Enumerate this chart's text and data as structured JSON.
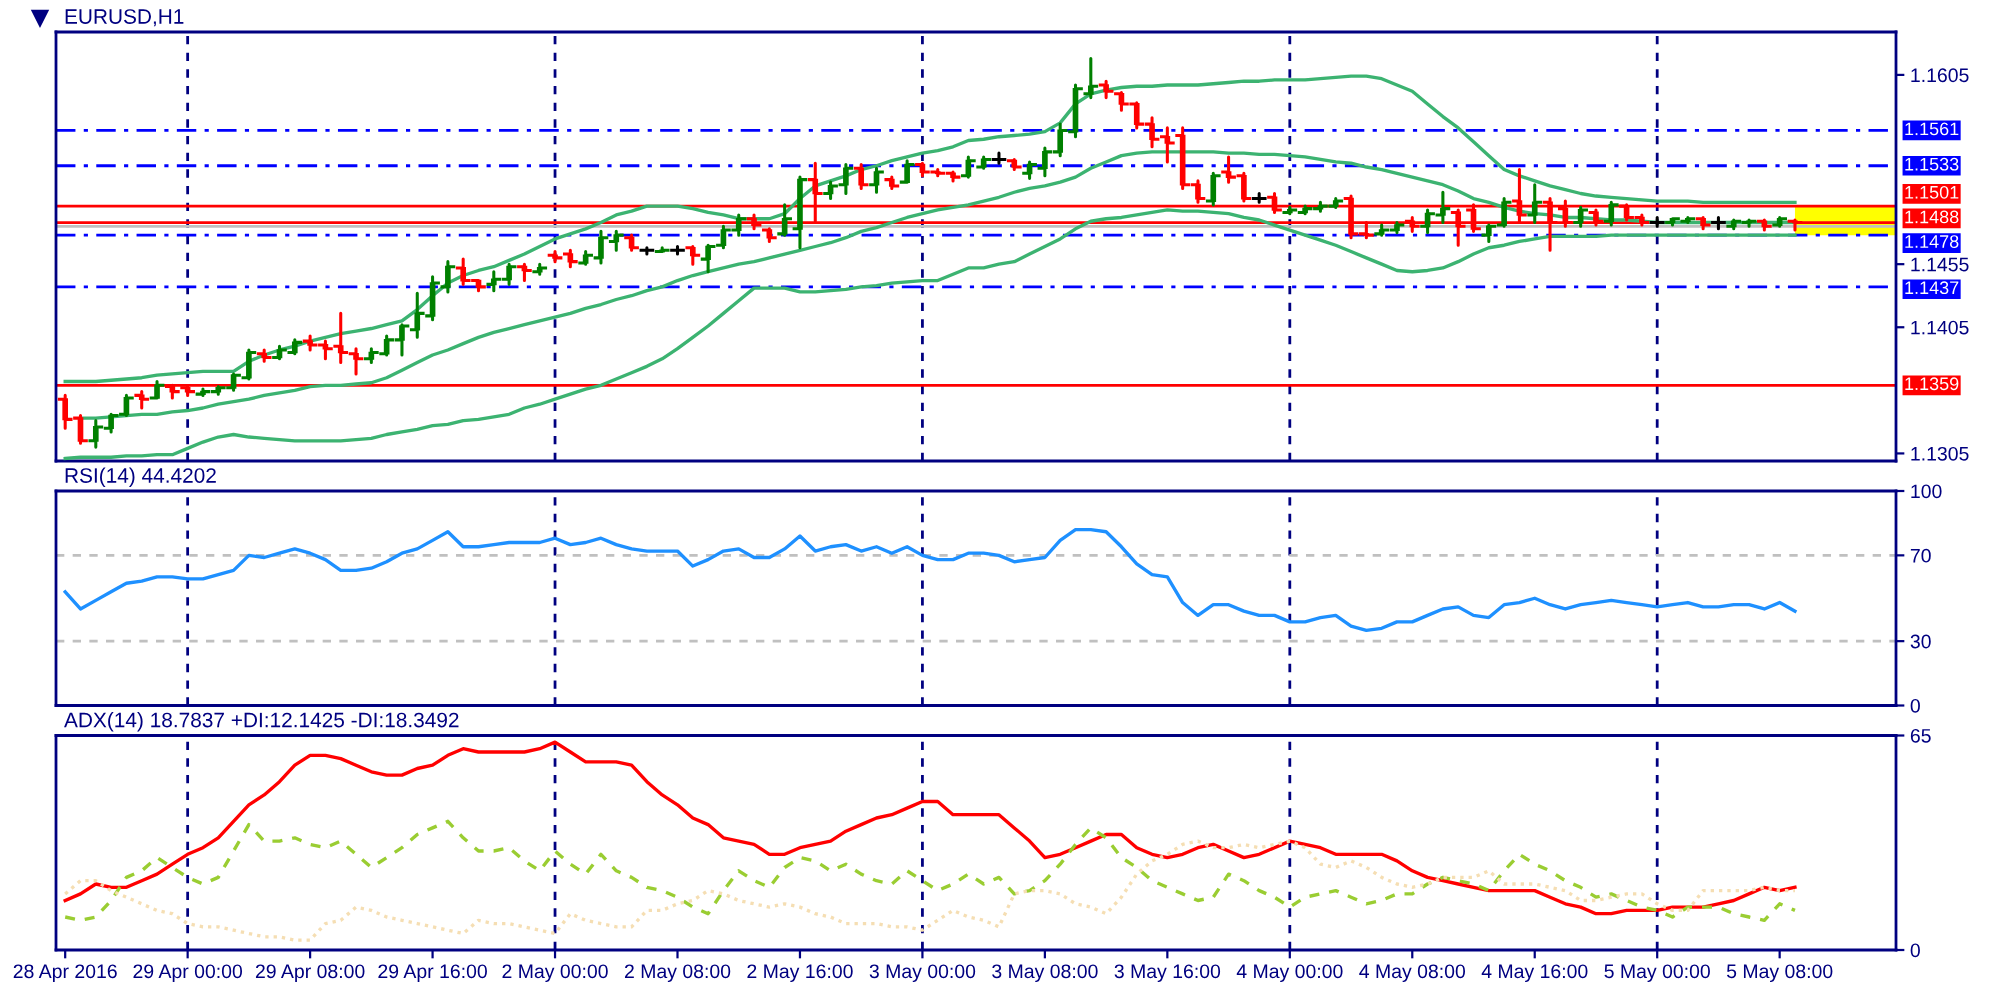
{
  "chart_data": [
    {
      "type": "candlestick",
      "title": "EURUSD,H1",
      "categories": [
        null,
        null,
        null,
        null,
        null,
        null,
        null,
        null,
        null,
        null,
        null,
        null,
        null,
        null,
        null,
        null,
        null,
        null,
        null,
        null,
        null,
        null,
        null,
        null,
        null,
        null,
        null,
        null,
        null,
        null,
        null,
        null,
        null,
        null,
        null,
        null,
        null,
        null,
        null,
        null,
        null,
        null,
        null,
        null,
        null,
        null,
        null,
        null,
        null,
        null,
        null,
        null,
        null,
        null,
        null,
        null,
        null,
        null,
        null,
        null,
        null,
        null,
        null,
        null,
        null,
        null,
        null,
        null,
        null,
        null,
        null,
        null,
        null,
        null,
        null,
        null,
        null,
        null,
        null,
        null,
        null,
        null,
        null,
        null,
        null,
        null,
        null,
        null,
        null,
        null,
        null,
        null,
        null,
        null,
        null,
        null,
        null,
        null,
        null,
        null,
        null,
        null,
        null,
        null,
        null,
        null,
        null,
        null,
        null,
        null,
        null,
        null,
        null,
        null
      ],
      "ohlc": [
        [
          1.1348,
          1.1351,
          1.1325,
          1.1332
        ],
        [
          1.1333,
          1.1335,
          1.1313,
          1.1315
        ],
        [
          1.1315,
          1.1331,
          1.131,
          1.1326
        ],
        [
          1.1325,
          1.1336,
          1.1322,
          1.1335
        ],
        [
          1.1336,
          1.1351,
          1.1335,
          1.1349
        ],
        [
          1.1351,
          1.1354,
          1.1341,
          1.1348
        ],
        [
          1.1349,
          1.1362,
          1.1349,
          1.1359
        ],
        [
          1.1358,
          1.1359,
          1.1349,
          1.1354
        ],
        [
          1.1357,
          1.1358,
          1.1351,
          1.1354
        ],
        [
          1.1352,
          1.1356,
          1.1351,
          1.1354
        ],
        [
          1.1354,
          1.1358,
          1.1352,
          1.1357
        ],
        [
          1.1357,
          1.1368,
          1.1355,
          1.1367
        ],
        [
          1.1365,
          1.1387,
          1.1364,
          1.1385
        ],
        [
          1.1384,
          1.1387,
          1.1378,
          1.1381
        ],
        [
          1.1381,
          1.139,
          1.138,
          1.1387
        ],
        [
          1.1385,
          1.1395,
          1.1384,
          1.1393
        ],
        [
          1.1394,
          1.1398,
          1.1387,
          1.1391
        ],
        [
          1.1391,
          1.1394,
          1.138,
          1.1388
        ],
        [
          1.139,
          1.1416,
          1.1377,
          1.1385
        ],
        [
          1.1384,
          1.1388,
          1.1368,
          1.138
        ],
        [
          1.138,
          1.1388,
          1.1377,
          1.1385
        ],
        [
          1.1384,
          1.1398,
          1.1383,
          1.1395
        ],
        [
          1.1395,
          1.1407,
          1.1383,
          1.1406
        ],
        [
          1.1403,
          1.1432,
          1.1397,
          1.1416
        ],
        [
          1.1414,
          1.1445,
          1.1411,
          1.144
        ],
        [
          1.1437,
          1.1457,
          1.1433,
          1.1453
        ],
        [
          1.1452,
          1.1459,
          1.1439,
          1.1442
        ],
        [
          1.1442,
          1.1442,
          1.1434,
          1.1437
        ],
        [
          1.1439,
          1.1449,
          1.1434,
          1.1443
        ],
        [
          1.1443,
          1.1455,
          1.1439,
          1.1453
        ],
        [
          1.1453,
          1.1455,
          1.1442,
          1.145
        ],
        [
          1.1449,
          1.1455,
          1.1447,
          1.1452
        ],
        [
          1.1462,
          1.1465,
          1.1457,
          1.146
        ],
        [
          1.1463,
          1.1466,
          1.1453,
          1.1457
        ],
        [
          1.1456,
          1.1465,
          1.1455,
          1.1462
        ],
        [
          1.146,
          1.1481,
          1.1456,
          1.1476
        ],
        [
          1.1473,
          1.1481,
          1.1466,
          1.1478
        ],
        [
          1.1476,
          1.1478,
          1.1466,
          1.1468
        ],
        [
          1.1466,
          1.1468,
          1.1463,
          1.1466
        ],
        [
          1.1465,
          1.1468,
          1.1465,
          1.1466
        ],
        [
          1.1466,
          1.1469,
          1.1463,
          1.1466
        ],
        [
          1.1468,
          1.1469,
          1.1455,
          1.1462
        ],
        [
          1.1459,
          1.147,
          1.1449,
          1.1469
        ],
        [
          1.147,
          1.1485,
          1.1468,
          1.1482
        ],
        [
          1.1482,
          1.1494,
          1.1478,
          1.1491
        ],
        [
          1.1491,
          1.1494,
          1.1483,
          1.1486
        ],
        [
          1.1482,
          1.1483,
          1.1473,
          1.1476
        ],
        [
          1.1479,
          1.1502,
          1.1478,
          1.1491
        ],
        [
          1.1483,
          1.1524,
          1.1468,
          1.1522
        ],
        [
          1.1522,
          1.1535,
          1.1489,
          1.1511
        ],
        [
          1.1511,
          1.152,
          1.1507,
          1.1517
        ],
        [
          1.1518,
          1.1534,
          1.1511,
          1.1531
        ],
        [
          1.1531,
          1.1534,
          1.1515,
          1.1518
        ],
        [
          1.1518,
          1.1531,
          1.1512,
          1.1528
        ],
        [
          1.1522,
          1.1524,
          1.1515,
          1.1517
        ],
        [
          1.152,
          1.1537,
          1.152,
          1.1534
        ],
        [
          1.1534,
          1.1535,
          1.1525,
          1.1528
        ],
        [
          1.1528,
          1.153,
          1.1525,
          1.1527
        ],
        [
          1.1527,
          1.1528,
          1.1521,
          1.1524
        ],
        [
          1.1525,
          1.154,
          1.1524,
          1.1537
        ],
        [
          1.1532,
          1.154,
          1.1531,
          1.1538
        ],
        [
          1.1538,
          1.1543,
          1.1535,
          1.1538
        ],
        [
          1.1537,
          1.1538,
          1.153,
          1.1532
        ],
        [
          1.1527,
          1.1536,
          1.1523,
          1.1534
        ],
        [
          1.1531,
          1.1547,
          1.1525,
          1.1544
        ],
        [
          1.1544,
          1.1566,
          1.1541,
          1.1561
        ],
        [
          1.156,
          1.1597,
          1.1556,
          1.1594
        ],
        [
          1.159,
          1.1618,
          1.1587,
          1.1596
        ],
        [
          1.1597,
          1.16,
          1.1587,
          1.1592
        ],
        [
          1.159,
          1.1591,
          1.1577,
          1.1582
        ],
        [
          1.1582,
          1.1583,
          1.1563,
          1.1566
        ],
        [
          1.1566,
          1.1571,
          1.1548,
          1.1554
        ],
        [
          1.1556,
          1.1563,
          1.1536,
          1.1551
        ],
        [
          1.1557,
          1.1563,
          1.1515,
          1.1518
        ],
        [
          1.1518,
          1.1521,
          1.1504,
          1.1507
        ],
        [
          1.1505,
          1.1527,
          1.1502,
          1.1525
        ],
        [
          1.1528,
          1.154,
          1.152,
          1.1524
        ],
        [
          1.1525,
          1.1527,
          1.1505,
          1.1507
        ],
        [
          1.1507,
          1.1511,
          1.1504,
          1.1507
        ],
        [
          1.1508,
          1.1511,
          1.1496,
          1.1498
        ],
        [
          1.1496,
          1.15,
          1.1495,
          1.1498
        ],
        [
          1.1496,
          1.1501,
          1.1495,
          1.1499
        ],
        [
          1.1499,
          1.1504,
          1.1497,
          1.1501
        ],
        [
          1.1501,
          1.1507,
          1.15,
          1.1505
        ],
        [
          1.1507,
          1.1509,
          1.1476,
          1.1479
        ],
        [
          1.1479,
          1.1488,
          1.1476,
          1.1478
        ],
        [
          1.1479,
          1.1486,
          1.1478,
          1.1482
        ],
        [
          1.1482,
          1.1488,
          1.148,
          1.1486
        ],
        [
          1.1489,
          1.1492,
          1.1481,
          1.1485
        ],
        [
          1.1485,
          1.1498,
          1.148,
          1.1495
        ],
        [
          1.1494,
          1.1512,
          1.1488,
          1.1499
        ],
        [
          1.1496,
          1.1498,
          1.147,
          1.1485
        ],
        [
          1.1498,
          1.1502,
          1.1481,
          1.1483
        ],
        [
          1.1478,
          1.1486,
          1.1473,
          1.1485
        ],
        [
          1.1486,
          1.1507,
          1.1485,
          1.1504
        ],
        [
          1.1505,
          1.153,
          1.1488,
          1.1494
        ],
        [
          1.1494,
          1.1518,
          1.1488,
          1.1504
        ],
        [
          1.1504,
          1.1507,
          1.1466,
          1.1488
        ],
        [
          1.1499,
          1.1505,
          1.1485,
          1.1488
        ],
        [
          1.1488,
          1.15,
          1.1485,
          1.1498
        ],
        [
          1.1496,
          1.1498,
          1.1486,
          1.1489
        ],
        [
          1.1489,
          1.1504,
          1.1486,
          1.1502
        ],
        [
          1.1501,
          1.1502,
          1.149,
          1.1492
        ],
        [
          1.1492,
          1.1494,
          1.1486,
          1.1488
        ],
        [
          1.1488,
          1.1492,
          1.1485,
          1.1488
        ],
        [
          1.1488,
          1.1491,
          1.1486,
          1.1491
        ],
        [
          1.1489,
          1.1492,
          1.1488,
          1.1491
        ],
        [
          1.1491,
          1.1492,
          1.1483,
          1.1486
        ],
        [
          1.1488,
          1.1492,
          1.1483,
          1.1488
        ],
        [
          1.1485,
          1.149,
          1.1483,
          1.1489
        ],
        [
          1.1488,
          1.149,
          1.1485,
          1.1489
        ],
        [
          1.1489,
          1.149,
          1.1482,
          1.1485
        ],
        [
          1.1486,
          1.1492,
          1.1485,
          1.1491
        ],
        [
          1.1489,
          1.149,
          1.1482,
          1.1488
        ]
      ],
      "colors": [
        "#ff0000",
        "#ff0000",
        "#008000",
        "#008000",
        "#008000",
        "#ff0000",
        "#008000",
        "#ff0000",
        "#ff0000",
        "#008000",
        "#008000",
        "#008000",
        "#008000",
        "#ff0000",
        "#008000",
        "#008000",
        "#ff0000",
        "#ff0000",
        "#ff0000",
        "#ff0000",
        "#008000",
        "#008000",
        "#008000",
        "#008000",
        "#008000",
        "#008000",
        "#ff0000",
        "#ff0000",
        "#008000",
        "#008000",
        "#ff0000",
        "#008000",
        "#ff0000",
        "#ff0000",
        "#008000",
        "#008000",
        "#008000",
        "#ff0000",
        "#000000",
        "#008000",
        "#000000",
        "#ff0000",
        "#008000",
        "#008000",
        "#008000",
        "#ff0000",
        "#ff0000",
        "#008000",
        "#008000",
        "#ff0000",
        "#008000",
        "#008000",
        "#ff0000",
        "#008000",
        "#ff0000",
        "#008000",
        "#ff0000",
        "#ff0000",
        "#ff0000",
        "#008000",
        "#008000",
        "#000000",
        "#ff0000",
        "#008000",
        "#008000",
        "#008000",
        "#008000",
        "#008000",
        "#ff0000",
        "#ff0000",
        "#ff0000",
        "#ff0000",
        "#ff0000",
        "#ff0000",
        "#ff0000",
        "#008000",
        "#ff0000",
        "#ff0000",
        "#000000",
        "#ff0000",
        "#008000",
        "#008000",
        "#008000",
        "#008000",
        "#ff0000",
        "#ff0000",
        "#008000",
        "#008000",
        "#ff0000",
        "#008000",
        "#008000",
        "#ff0000",
        "#ff0000",
        "#008000",
        "#008000",
        "#ff0000",
        "#008000",
        "#ff0000",
        "#ff0000",
        "#008000",
        "#ff0000",
        "#008000",
        "#ff0000",
        "#ff0000",
        "#000000",
        "#008000",
        "#008000",
        "#ff0000",
        "#000000",
        "#008000",
        "#008000",
        "#ff0000",
        "#008000",
        "#ff0000"
      ],
      "series": [
        {
          "type": "line",
          "color": "#3cb371",
          "values": [
            1.1362,
            1.1362,
            1.1362,
            1.1363,
            1.1364,
            1.1365,
            1.1367,
            1.1368,
            1.1369,
            1.137,
            1.137,
            1.137,
            1.1378,
            1.1383,
            1.1387,
            1.139,
            1.1394,
            1.1397,
            1.14,
            1.1402,
            1.1404,
            1.1407,
            1.141,
            1.1419,
            1.143,
            1.144,
            1.1446,
            1.145,
            1.1453,
            1.1458,
            1.1463,
            1.1469,
            1.1475,
            1.1479,
            1.1483,
            1.1488,
            1.1494,
            1.1497,
            1.1501,
            1.1501,
            1.1501,
            1.1499,
            1.1496,
            1.1494,
            1.1491,
            1.1491,
            1.1491,
            1.1495,
            1.1507,
            1.1517,
            1.1521,
            1.1525,
            1.153,
            1.1533,
            1.1537,
            1.154,
            1.1543,
            1.1545,
            1.1548,
            1.1553,
            1.1554,
            1.1556,
            1.1557,
            1.1558,
            1.156,
            1.1567,
            1.1582,
            1.159,
            1.1593,
            1.1595,
            1.1596,
            1.1596,
            1.1597,
            1.1597,
            1.1597,
            1.1598,
            1.1599,
            1.16,
            1.16,
            1.1601,
            1.1601,
            1.1601,
            1.1602,
            1.1603,
            1.1604,
            1.1604,
            1.1602,
            1.1597,
            1.1592,
            1.1582,
            1.1572,
            1.1563,
            1.1552,
            1.1541,
            1.153,
            1.1525,
            1.1521,
            1.1517,
            1.1514,
            1.1511,
            1.1509,
            1.1508,
            1.1507,
            1.1506,
            1.1505,
            1.1505,
            1.1505,
            1.1504,
            1.1504,
            1.1504,
            1.1504,
            1.1504,
            1.1504,
            1.1504
          ]
        },
        {
          "type": "line",
          "color": "#3cb371",
          "values": [
            null,
            1.1333,
            1.1333,
            1.1334,
            1.1335,
            1.1336,
            1.1336,
            1.1338,
            1.1339,
            1.1341,
            1.1344,
            1.1346,
            1.1348,
            1.1351,
            1.1353,
            1.1355,
            1.1358,
            1.1359,
            1.1359,
            1.136,
            1.1361,
            1.1365,
            1.1371,
            1.1377,
            1.1383,
            1.1387,
            1.1392,
            1.1397,
            1.1401,
            1.1404,
            1.1407,
            1.141,
            1.1413,
            1.1416,
            1.142,
            1.1423,
            1.1427,
            1.143,
            1.1434,
            1.1437,
            1.1442,
            1.1446,
            1.1449,
            1.1452,
            1.1455,
            1.1457,
            1.146,
            1.1463,
            1.1466,
            1.1469,
            1.1472,
            1.1476,
            1.1481,
            1.1484,
            1.1488,
            1.1492,
            1.1495,
            1.1498,
            1.15,
            1.1502,
            1.1505,
            1.1508,
            1.1512,
            1.1515,
            1.1517,
            1.152,
            1.1524,
            1.1531,
            1.1536,
            1.1541,
            1.1543,
            1.1544,
            1.1544,
            1.1544,
            1.1544,
            1.1544,
            1.1543,
            1.1543,
            1.1542,
            1.1542,
            1.1541,
            1.154,
            1.1538,
            1.1536,
            1.1535,
            1.1532,
            1.153,
            1.1527,
            1.1524,
            1.1521,
            1.1518,
            1.1513,
            1.1507,
            1.1504,
            1.15,
            1.1497,
            1.1495,
            1.1494,
            1.1492,
            1.1492,
            1.1491,
            1.149,
            1.149,
            1.1489,
            1.1488,
            1.1488,
            1.1488,
            1.1488,
            1.1488,
            1.1488,
            1.1488,
            1.1488,
            1.1488,
            1.1488
          ]
        },
        {
          "type": "line",
          "color": "#3cb371",
          "values": [
            1.1301,
            1.1302,
            1.1302,
            1.1302,
            1.1303,
            1.1303,
            1.1304,
            1.1304,
            1.1309,
            1.1314,
            1.1318,
            1.132,
            1.1318,
            1.1317,
            1.1316,
            1.1315,
            1.1315,
            1.1315,
            1.1315,
            1.1316,
            1.1317,
            1.132,
            1.1322,
            1.1324,
            1.1327,
            1.1328,
            1.1331,
            1.1332,
            1.1334,
            1.1336,
            1.1341,
            1.1344,
            1.1348,
            1.1352,
            1.1356,
            1.1359,
            1.1364,
            1.1369,
            1.1374,
            1.138,
            1.1388,
            1.1397,
            1.1406,
            1.1416,
            1.1426,
            1.1436,
            1.1436,
            1.1436,
            1.1433,
            1.1433,
            1.1434,
            1.1435,
            1.1437,
            1.1438,
            1.144,
            1.1441,
            1.1442,
            1.1442,
            1.1447,
            1.1452,
            1.1452,
            1.1455,
            1.1457,
            1.1463,
            1.1469,
            1.1475,
            1.1483,
            1.1489,
            1.1491,
            1.1492,
            1.1494,
            1.1496,
            1.1498,
            1.1497,
            1.1497,
            1.1496,
            1.1495,
            1.1492,
            1.149,
            1.1486,
            1.1482,
            1.1478,
            1.1474,
            1.147,
            1.1465,
            1.146,
            1.1455,
            1.145,
            1.1449,
            1.145,
            1.1452,
            1.1457,
            1.1463,
            1.1468,
            1.147,
            1.1473,
            1.1475,
            1.1477,
            1.1477,
            1.1477,
            1.1477,
            1.1478,
            1.1478,
            1.1478,
            1.1478,
            1.1478,
            1.1478,
            1.1478,
            1.1478,
            1.1478,
            1.1478,
            1.1478,
            1.1478,
            1.1478
          ]
        }
      ],
      "ylim": [
        1.1299,
        1.1639
      ],
      "yticks": [
        1.1605,
        1.1455,
        1.1405,
        1.1305
      ],
      "ref_lines": [
        {
          "axis": "y",
          "value": 1.1561,
          "label": "1.1561",
          "color": "#0000ff",
          "line_style": "dashdot"
        },
        {
          "axis": "y",
          "value": 1.1533,
          "label": "1.1533",
          "color": "#0000ff",
          "line_style": "dashdot"
        },
        {
          "axis": "y",
          "value": 1.1501,
          "label": "1.1501",
          "color": "#ff0000",
          "line_style": "solid"
        },
        {
          "axis": "y",
          "value": 1.1488,
          "label": "1.1488",
          "color": "#ff0000",
          "line_style": "solid"
        },
        {
          "axis": "y",
          "value": 1.1485,
          "color": "#c0c0c0",
          "line_style": "solid"
        },
        {
          "axis": "y",
          "value": 1.1478,
          "label": "1.1478",
          "color": "#0000ff",
          "line_style": "dashdot"
        },
        {
          "axis": "y",
          "value": 1.1437,
          "label": "1.1437",
          "color": "#0000ff",
          "line_style": "dashdot"
        },
        {
          "axis": "y",
          "value": 1.1359,
          "label": "1.1359",
          "color": "#ff0000",
          "line_style": "solid"
        }
      ],
      "grid": "x",
      "tick_labels": "y"
    },
    {
      "type": "line",
      "title": "RSI(14) 44.4202",
      "categories": [
        null,
        null,
        null,
        null,
        null,
        null,
        null,
        null,
        null,
        null,
        null,
        null,
        null,
        null,
        null,
        null,
        null,
        null,
        null,
        null,
        null,
        null,
        null,
        null,
        null,
        null,
        null,
        null,
        null,
        null,
        null,
        null,
        null,
        null,
        null,
        null,
        null,
        null,
        null,
        null,
        null,
        null,
        null,
        null,
        null,
        null,
        null,
        null,
        null,
        null,
        null,
        null,
        null,
        null,
        null,
        null,
        null,
        null,
        null,
        null,
        null,
        null,
        null,
        null,
        null,
        null,
        null,
        null,
        null,
        null,
        null,
        null,
        null,
        null,
        null,
        null,
        null,
        null,
        null,
        null,
        null,
        null,
        null,
        null,
        null,
        null,
        null,
        null,
        null,
        null,
        null,
        null,
        null,
        null,
        null,
        null,
        null,
        null,
        null,
        null,
        null,
        null,
        null,
        null,
        null,
        null,
        null,
        null,
        null,
        null,
        null,
        null,
        null,
        null
      ],
      "series": [
        {
          "color": "#1e90ff",
          "values": [
            53,
            45,
            49,
            53,
            57,
            58,
            60,
            60,
            59,
            59,
            61,
            63,
            70,
            69,
            71,
            73,
            71,
            68,
            63,
            63,
            64,
            67,
            71,
            73,
            77,
            81,
            74,
            74,
            75,
            76,
            76,
            76,
            78,
            75,
            76,
            78,
            75,
            73,
            72,
            72,
            72,
            65,
            68,
            72,
            73,
            69,
            69,
            73,
            79,
            72,
            74,
            75,
            72,
            74,
            71,
            74,
            70,
            68,
            68,
            71,
            71,
            70,
            67,
            68,
            69,
            77,
            82,
            82,
            81,
            74,
            66,
            61,
            60,
            48,
            42,
            47,
            47,
            44,
            42,
            42,
            39,
            39,
            41,
            42,
            37,
            35,
            36,
            39,
            39,
            42,
            45,
            46,
            42,
            41,
            47,
            48,
            50,
            47,
            45,
            47,
            48,
            49,
            48,
            47,
            46,
            47,
            48,
            46,
            46,
            47,
            47,
            45,
            48,
            44
          ]
        }
      ],
      "ylim": [
        0,
        100
      ],
      "yticks": [
        0,
        30,
        70,
        100
      ],
      "ref_lines": [
        {
          "axis": "y",
          "value": 70,
          "color": "#c0c0c0",
          "line_style": "dashed"
        },
        {
          "axis": "y",
          "value": 30,
          "color": "#c0c0c0",
          "line_style": "dashed"
        }
      ],
      "grid": "x",
      "tick_labels": "y"
    },
    {
      "type": "line",
      "title": "ADX(14) 18.7837 +DI:12.1425 -DI:18.3492",
      "categories": [
        "28 Apr 2016",
        null,
        null,
        null,
        null,
        null,
        null,
        null,
        "29 Apr 00:00",
        null,
        null,
        null,
        null,
        null,
        null,
        null,
        "29 Apr 08:00",
        null,
        null,
        null,
        null,
        null,
        null,
        null,
        "29 Apr 16:00",
        null,
        null,
        null,
        null,
        null,
        null,
        null,
        "2 May 00:00",
        null,
        null,
        null,
        null,
        null,
        null,
        null,
        "2 May 08:00",
        null,
        null,
        null,
        null,
        null,
        null,
        null,
        "2 May 16:00",
        null,
        null,
        null,
        null,
        null,
        null,
        null,
        "3 May 00:00",
        null,
        null,
        null,
        null,
        null,
        null,
        null,
        "3 May 08:00",
        null,
        null,
        null,
        null,
        null,
        null,
        null,
        "3 May 16:00",
        null,
        null,
        null,
        null,
        null,
        null,
        null,
        "4 May 00:00",
        null,
        null,
        null,
        null,
        null,
        null,
        null,
        "4 May 08:00",
        null,
        null,
        null,
        null,
        null,
        null,
        null,
        "4 May 16:00",
        null,
        null,
        null,
        null,
        null,
        null,
        null,
        "5 May 00:00",
        null,
        null,
        null,
        null,
        null,
        null,
        null,
        "5 May 08:00",
        null
      ],
      "series": [
        {
          "color": "#ff0000",
          "line_style": "solid",
          "values": [
            15,
            17,
            20,
            19,
            19,
            21,
            23,
            26,
            29,
            31,
            34,
            39,
            44,
            47,
            51,
            56,
            59,
            59,
            58,
            56,
            54,
            53,
            53,
            55,
            56,
            59,
            61,
            60,
            60,
            60,
            60,
            61,
            63,
            60,
            57,
            57,
            57,
            56,
            51,
            47,
            44,
            40,
            38,
            34,
            33,
            32,
            29,
            29,
            31,
            32,
            33,
            36,
            38,
            40,
            41,
            43,
            45,
            45,
            41,
            41,
            41,
            41,
            37,
            33,
            28,
            29,
            31,
            33,
            35,
            35,
            31,
            29,
            28,
            29,
            31,
            32,
            30,
            28,
            29,
            31,
            33,
            32,
            31,
            29,
            29,
            29,
            29,
            27,
            24,
            22,
            21,
            20,
            19,
            18,
            18,
            18,
            18,
            16,
            14,
            13,
            11,
            11,
            12,
            12,
            12,
            13,
            13,
            13,
            14,
            15,
            17,
            19,
            18,
            19
          ]
        },
        {
          "color": "#9acd32",
          "line_style": "dashed",
          "values": [
            10,
            9,
            10,
            15,
            22,
            24,
            28,
            25,
            22,
            20,
            22,
            30,
            38,
            33,
            33,
            34,
            32,
            31,
            33,
            29,
            25,
            28,
            31,
            35,
            37,
            39,
            34,
            30,
            30,
            31,
            27,
            24,
            30,
            26,
            23,
            29,
            24,
            22,
            19,
            18,
            16,
            13,
            11,
            18,
            24,
            21,
            19,
            25,
            28,
            27,
            24,
            26,
            23,
            21,
            20,
            24,
            21,
            18,
            20,
            23,
            20,
            22,
            17,
            18,
            21,
            26,
            32,
            37,
            34,
            28,
            25,
            21,
            19,
            17,
            15,
            16,
            23,
            21,
            18,
            16,
            13,
            16,
            17,
            18,
            16,
            14,
            15,
            17,
            17,
            20,
            22,
            21,
            20,
            18,
            24,
            29,
            26,
            24,
            21,
            19,
            16,
            17,
            15,
            13,
            12,
            10,
            13,
            13,
            13,
            11,
            10,
            9,
            14,
            12
          ]
        },
        {
          "color": "#f5deb3",
          "line_style": "dotted",
          "values": [
            17,
            21,
            21,
            18,
            16,
            14,
            12,
            11,
            8,
            7,
            7,
            6,
            5,
            4,
            4,
            3,
            3,
            8,
            9,
            13,
            12,
            10,
            9,
            8,
            7,
            6,
            5,
            9,
            8,
            8,
            7,
            6,
            5,
            11,
            9,
            8,
            7,
            7,
            12,
            12,
            14,
            15,
            18,
            17,
            15,
            14,
            13,
            14,
            13,
            11,
            10,
            8,
            8,
            8,
            7,
            7,
            6,
            9,
            12,
            10,
            9,
            7,
            17,
            18,
            18,
            17,
            14,
            13,
            11,
            16,
            23,
            27,
            29,
            32,
            33,
            31,
            31,
            32,
            31,
            32,
            33,
            31,
            26,
            25,
            27,
            25,
            22,
            20,
            19,
            20,
            22,
            22,
            22,
            24,
            20,
            20,
            20,
            19,
            18,
            15,
            15,
            16,
            17,
            17,
            14,
            12,
            12,
            18,
            18,
            18,
            18,
            19,
            18,
            18
          ]
        }
      ],
      "ylim": [
        0,
        65
      ],
      "yticks": [
        0,
        65
      ],
      "ref_lines": [
        {
          "axis": "x",
          "value": "29 Apr 00:00",
          "color": "#000080",
          "line_style": "dashed"
        },
        {
          "axis": "x",
          "value": "2 May 00:00",
          "color": "#000080",
          "line_style": "dashed"
        },
        {
          "axis": "x",
          "value": "3 May 00:00",
          "color": "#000080",
          "line_style": "dashed"
        },
        {
          "axis": "x",
          "value": "4 May 00:00",
          "color": "#000080",
          "line_style": "dashed"
        },
        {
          "axis": "x",
          "value": "5 May 00:00",
          "color": "#000080",
          "line_style": "dashed"
        }
      ]
    }
  ]
}
